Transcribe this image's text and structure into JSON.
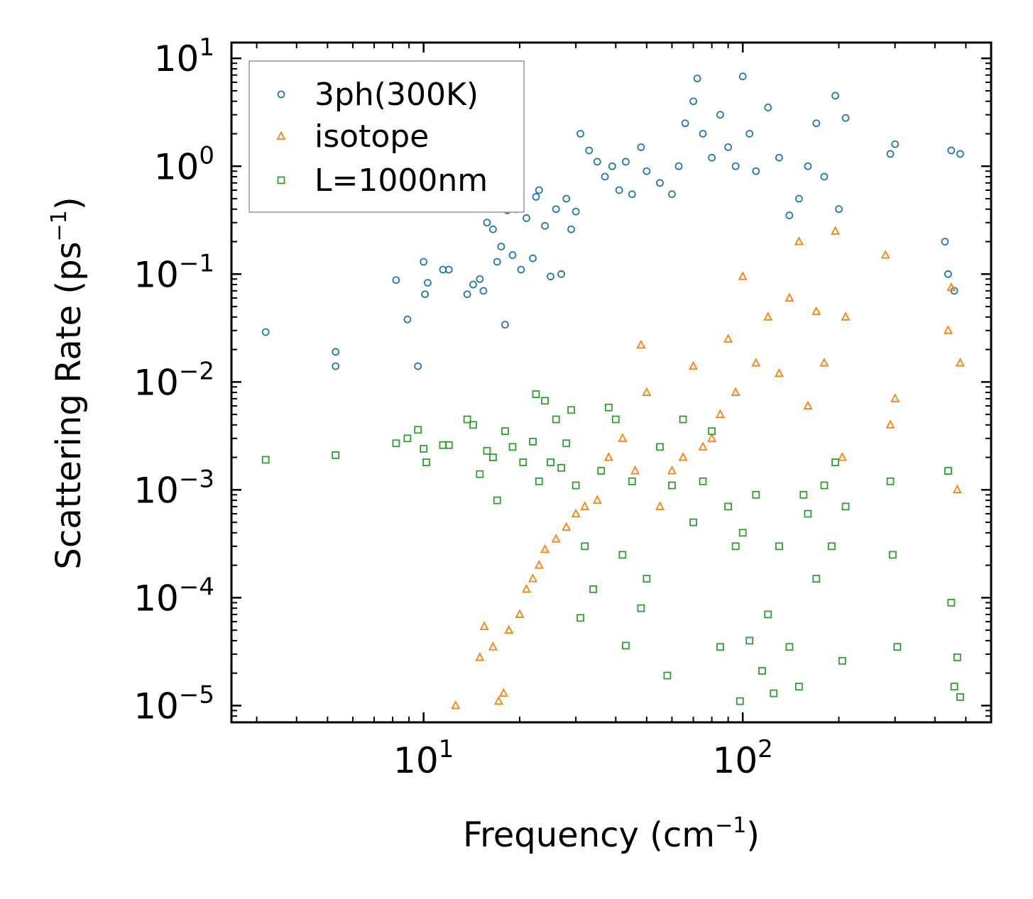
{
  "chart_data": {
    "type": "scatter",
    "xscale": "log",
    "yscale": "log",
    "xlim": [
      2.5,
      600
    ],
    "ylim": [
      7e-06,
      14
    ],
    "xlabel": "Frequency (cm",
    "xlabel_sup": "−1",
    "xlabel_end": ")",
    "ylabel": "Scattering Rate (ps",
    "ylabel_sup": "−1",
    "ylabel_end": ")",
    "xticks": [
      {
        "value": 10,
        "base": "10",
        "exp": "1"
      },
      {
        "value": 100,
        "base": "10",
        "exp": "2"
      }
    ],
    "yticks": [
      {
        "value": 10,
        "base": "10",
        "exp": "1"
      },
      {
        "value": 1,
        "base": "10",
        "exp": "0"
      },
      {
        "value": 0.1,
        "base": "10",
        "exp": "−1"
      },
      {
        "value": 0.01,
        "base": "10",
        "exp": "−2"
      },
      {
        "value": 0.001,
        "base": "10",
        "exp": "−3"
      },
      {
        "value": 0.0001,
        "base": "10",
        "exp": "−4"
      },
      {
        "value": 1e-05,
        "base": "10",
        "exp": "−5"
      }
    ],
    "legend": {
      "placement": "top-left"
    },
    "series": [
      {
        "name": "3ph(300K)",
        "marker": "circle",
        "color": "#1f77b4",
        "points": [
          [
            3.2,
            0.029
          ],
          [
            5.3,
            0.019
          ],
          [
            5.3,
            0.014
          ],
          [
            8.2,
            0.088
          ],
          [
            8.9,
            0.038
          ],
          [
            9.6,
            0.014
          ],
          [
            10.0,
            0.13
          ],
          [
            10.1,
            0.065
          ],
          [
            10.3,
            0.083
          ],
          [
            11.5,
            0.11
          ],
          [
            12.0,
            0.11
          ],
          [
            13.7,
            0.065
          ],
          [
            14.3,
            0.08
          ],
          [
            15.0,
            0.09
          ],
          [
            15.4,
            0.07
          ],
          [
            15.8,
            0.3
          ],
          [
            16.5,
            0.26
          ],
          [
            17.0,
            0.13
          ],
          [
            17.5,
            0.18
          ],
          [
            18.0,
            0.034
          ],
          [
            18.3,
            0.39
          ],
          [
            19.0,
            0.15
          ],
          [
            19.5,
            0.4
          ],
          [
            20.2,
            0.11
          ],
          [
            21.0,
            0.33
          ],
          [
            22.0,
            0.14
          ],
          [
            22.5,
            0.52
          ],
          [
            23.0,
            0.6
          ],
          [
            24.0,
            0.28
          ],
          [
            25.0,
            0.095
          ],
          [
            26.0,
            0.4
          ],
          [
            27.0,
            0.1
          ],
          [
            28.0,
            0.5
          ],
          [
            29.0,
            0.26
          ],
          [
            30.0,
            0.38
          ],
          [
            31.0,
            2.0
          ],
          [
            33.0,
            1.4
          ],
          [
            35.0,
            1.1
          ],
          [
            37.0,
            0.8
          ],
          [
            39.0,
            1.0
          ],
          [
            41.0,
            0.6
          ],
          [
            43.0,
            1.1
          ],
          [
            45.0,
            0.55
          ],
          [
            48.0,
            1.5
          ],
          [
            50.0,
            0.9
          ],
          [
            55.0,
            0.7
          ],
          [
            60.0,
            0.55
          ],
          [
            63.0,
            1.0
          ],
          [
            66.0,
            2.5
          ],
          [
            70.0,
            4.0
          ],
          [
            72.0,
            6.5
          ],
          [
            75.0,
            2.0
          ],
          [
            80.0,
            1.2
          ],
          [
            85.0,
            3.0
          ],
          [
            90.0,
            1.5
          ],
          [
            95.0,
            1.0
          ],
          [
            100.0,
            6.8
          ],
          [
            105.0,
            2.0
          ],
          [
            110.0,
            0.9
          ],
          [
            120.0,
            3.5
          ],
          [
            130.0,
            1.2
          ],
          [
            140.0,
            0.35
          ],
          [
            150.0,
            0.5
          ],
          [
            160.0,
            1.0
          ],
          [
            170.0,
            2.5
          ],
          [
            180.0,
            0.8
          ],
          [
            195.0,
            4.5
          ],
          [
            200.0,
            0.4
          ],
          [
            210.0,
            2.8
          ],
          [
            290.0,
            1.3
          ],
          [
            300.0,
            1.6
          ],
          [
            430.0,
            0.2
          ],
          [
            440.0,
            0.1
          ],
          [
            450.0,
            1.4
          ],
          [
            460.0,
            0.07
          ],
          [
            480.0,
            1.3
          ]
        ]
      },
      {
        "name": "isotope",
        "marker": "triangle",
        "color": "#ff7f0e",
        "points": [
          [
            12.6,
            1e-05
          ],
          [
            15.0,
            2.8e-05
          ],
          [
            15.5,
            5.4e-05
          ],
          [
            16.5,
            3.5e-05
          ],
          [
            17.2,
            1.1e-05
          ],
          [
            17.8,
            1.3e-05
          ],
          [
            18.5,
            5e-05
          ],
          [
            20.0,
            7e-05
          ],
          [
            21.0,
            0.00012
          ],
          [
            22.0,
            0.00015
          ],
          [
            23.0,
            0.0002
          ],
          [
            24.0,
            0.00028
          ],
          [
            26.0,
            0.00035
          ],
          [
            28.0,
            0.00045
          ],
          [
            30.0,
            0.0006
          ],
          [
            32.0,
            0.0007
          ],
          [
            35.0,
            0.0008
          ],
          [
            38.0,
            0.002
          ],
          [
            42.0,
            0.003
          ],
          [
            46.0,
            0.0015
          ],
          [
            48.0,
            0.022
          ],
          [
            50.0,
            0.008
          ],
          [
            55.0,
            0.0007
          ],
          [
            60.0,
            0.0015
          ],
          [
            65.0,
            0.002
          ],
          [
            70.0,
            0.014
          ],
          [
            75.0,
            0.0025
          ],
          [
            80.0,
            0.003
          ],
          [
            85.0,
            0.005
          ],
          [
            90.0,
            0.025
          ],
          [
            95.0,
            0.008
          ],
          [
            100.0,
            0.095
          ],
          [
            110.0,
            0.015
          ],
          [
            120.0,
            0.04
          ],
          [
            130.0,
            0.012
          ],
          [
            140.0,
            0.06
          ],
          [
            150.0,
            0.2
          ],
          [
            160.0,
            0.006
          ],
          [
            170.0,
            0.045
          ],
          [
            180.0,
            0.015
          ],
          [
            195.0,
            0.25
          ],
          [
            205.0,
            0.002
          ],
          [
            210.0,
            0.04
          ],
          [
            280.0,
            0.15
          ],
          [
            290.0,
            0.004
          ],
          [
            300.0,
            0.007
          ],
          [
            440.0,
            0.03
          ],
          [
            450.0,
            0.075
          ],
          [
            470.0,
            0.001
          ],
          [
            480.0,
            0.015
          ]
        ]
      },
      {
        "name": "L=1000nm",
        "marker": "square",
        "color": "#2ca02c",
        "points": [
          [
            3.2,
            0.0019
          ],
          [
            5.3,
            0.0021
          ],
          [
            8.2,
            0.0027
          ],
          [
            8.9,
            0.003
          ],
          [
            9.6,
            0.0036
          ],
          [
            10.0,
            0.0024
          ],
          [
            10.2,
            0.0018
          ],
          [
            11.5,
            0.0026
          ],
          [
            12.0,
            0.0026
          ],
          [
            13.7,
            0.0045
          ],
          [
            14.3,
            0.004
          ],
          [
            15.0,
            0.0014
          ],
          [
            15.8,
            0.0023
          ],
          [
            16.5,
            0.002
          ],
          [
            17.0,
            0.0008
          ],
          [
            18.0,
            0.0035
          ],
          [
            19.0,
            0.0025
          ],
          [
            20.5,
            0.0018
          ],
          [
            22.0,
            0.0028
          ],
          [
            22.5,
            0.0077
          ],
          [
            23.0,
            0.0012
          ],
          [
            24.0,
            0.0067
          ],
          [
            25.0,
            0.0018
          ],
          [
            26.0,
            0.0045
          ],
          [
            27.0,
            0.0016
          ],
          [
            28.0,
            0.0027
          ],
          [
            29.0,
            0.0055
          ],
          [
            30.0,
            0.0011
          ],
          [
            31.0,
            6.5e-05
          ],
          [
            32.0,
            0.0003
          ],
          [
            34.0,
            0.00012
          ],
          [
            36.0,
            0.0015
          ],
          [
            38.0,
            0.0058
          ],
          [
            40.0,
            0.0045
          ],
          [
            42.0,
            0.00025
          ],
          [
            43.0,
            3.6e-05
          ],
          [
            45.0,
            0.0012
          ],
          [
            48.0,
            8e-05
          ],
          [
            50.0,
            0.00015
          ],
          [
            55.0,
            0.0025
          ],
          [
            58.0,
            1.9e-05
          ],
          [
            60.0,
            0.0011
          ],
          [
            65.0,
            0.0045
          ],
          [
            70.0,
            0.0005
          ],
          [
            75.0,
            0.0012
          ],
          [
            80.0,
            0.0035
          ],
          [
            85.0,
            3.5e-05
          ],
          [
            90.0,
            0.0007
          ],
          [
            95.0,
            0.0003
          ],
          [
            98.0,
            1.1e-05
          ],
          [
            100.0,
            0.0004
          ],
          [
            105.0,
            4e-05
          ],
          [
            110.0,
            0.0009
          ],
          [
            115.0,
            2.1e-05
          ],
          [
            120.0,
            7e-05
          ],
          [
            125.0,
            1.3e-05
          ],
          [
            130.0,
            0.0003
          ],
          [
            140.0,
            3.5e-05
          ],
          [
            150.0,
            1.5e-05
          ],
          [
            155.0,
            0.0009
          ],
          [
            160.0,
            0.0006
          ],
          [
            170.0,
            0.00015
          ],
          [
            180.0,
            0.0011
          ],
          [
            190.0,
            0.0003
          ],
          [
            195.0,
            0.0018
          ],
          [
            205.0,
            2.6e-05
          ],
          [
            210.0,
            0.0007
          ],
          [
            290.0,
            0.0012
          ],
          [
            295.0,
            0.00025
          ],
          [
            305.0,
            3.5e-05
          ],
          [
            440.0,
            0.0015
          ],
          [
            450.0,
            9e-05
          ],
          [
            460.0,
            1.5e-05
          ],
          [
            470.0,
            2.8e-05
          ],
          [
            480.0,
            1.2e-05
          ]
        ]
      }
    ]
  }
}
